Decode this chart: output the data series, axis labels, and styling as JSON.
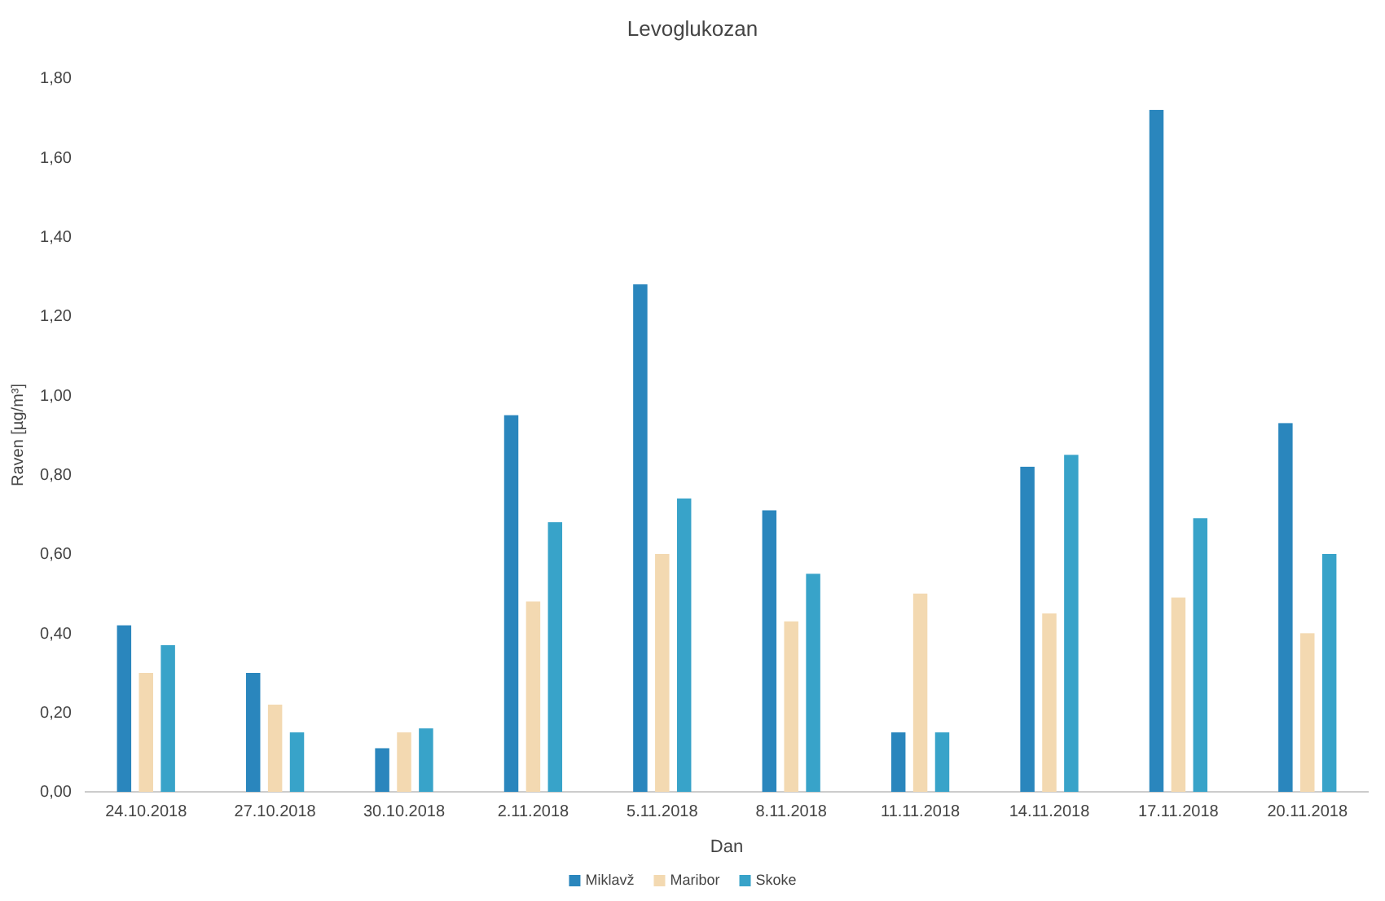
{
  "chart_data": {
    "type": "bar",
    "title": "Levoglukozan",
    "xlabel": "Dan",
    "ylabel": "Raven [µg/m³]",
    "categories": [
      "24.10.2018",
      "27.10.2018",
      "30.10.2018",
      "2.11.2018",
      "5.11.2018",
      "8.11.2018",
      "11.11.2018",
      "14.11.2018",
      "17.11.2018",
      "20.11.2018"
    ],
    "series": [
      {
        "name": "Miklavž",
        "color": "#2a86bd",
        "values": [
          0.42,
          0.3,
          0.11,
          0.95,
          1.28,
          0.71,
          0.15,
          0.82,
          1.72,
          0.93
        ]
      },
      {
        "name": "Maribor",
        "color": "#f3d9b1",
        "values": [
          0.3,
          0.22,
          0.15,
          0.48,
          0.6,
          0.43,
          0.5,
          0.45,
          0.49,
          0.4
        ]
      },
      {
        "name": "Skoke",
        "color": "#38a3c9",
        "values": [
          0.37,
          0.15,
          0.16,
          0.68,
          0.74,
          0.55,
          0.15,
          0.85,
          0.69,
          0.6
        ]
      }
    ],
    "ylim": [
      0,
      1.8
    ],
    "yticks": [
      {
        "value": 0,
        "label": "0,00"
      },
      {
        "value": 0.2,
        "label": "0,20"
      },
      {
        "value": 0.4,
        "label": "0,40"
      },
      {
        "value": 0.6,
        "label": "0,60"
      },
      {
        "value": 0.8,
        "label": "0,80"
      },
      {
        "value": 1.0,
        "label": "1,00"
      },
      {
        "value": 1.2,
        "label": "1,20"
      },
      {
        "value": 1.4,
        "label": "1,40"
      },
      {
        "value": 1.6,
        "label": "1,60"
      },
      {
        "value": 1.8,
        "label": "1,80"
      }
    ],
    "grid": false,
    "legend": "bottom"
  }
}
